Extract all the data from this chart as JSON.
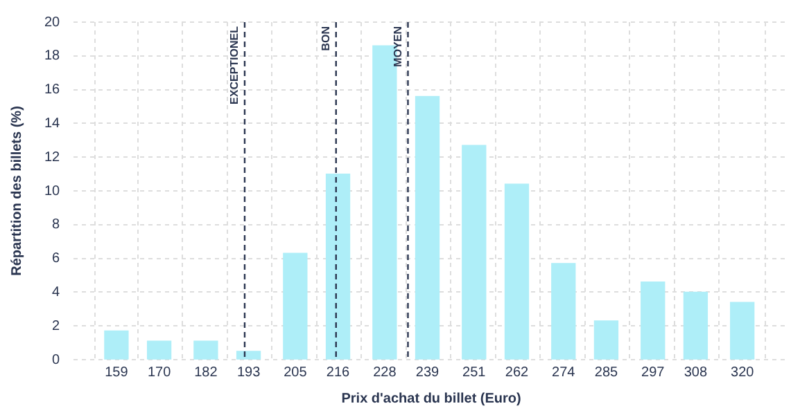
{
  "chart_data": {
    "type": "bar",
    "xlabel": "Prix d'achat du billet (Euro)",
    "ylabel": "Répartition des billets (%)",
    "x": [
      159,
      170,
      182,
      193,
      205,
      216,
      228,
      239,
      251,
      262,
      274,
      285,
      297,
      308,
      320
    ],
    "values": [
      1.7,
      1.1,
      1.1,
      0.5,
      6.3,
      11.0,
      18.6,
      15.6,
      12.7,
      10.4,
      5.7,
      2.3,
      4.6,
      4.0,
      3.4
    ],
    "color": "#aeeef8",
    "xlim": [
      148,
      332
    ],
    "xticks": [
      159,
      170,
      182,
      193,
      205,
      216,
      228,
      239,
      251,
      262,
      274,
      285,
      297,
      308,
      320
    ],
    "ylim": [
      0,
      20
    ],
    "yticks": [
      0,
      2,
      4,
      6,
      8,
      10,
      12,
      14,
      16,
      18,
      20
    ],
    "grid": true,
    "legend": false,
    "ref_lines": [
      {
        "axis": "x",
        "value": 192,
        "label": "EXCEPTIONEL",
        "color": "#2a3550",
        "line_style": "dashed"
      },
      {
        "axis": "x",
        "value": 215.5,
        "label": "BON",
        "color": "#2a3550",
        "line_style": "dashed"
      },
      {
        "axis": "x",
        "value": 234,
        "label": "MOYEN",
        "color": "#2a3550",
        "line_style": "dashed"
      }
    ]
  }
}
